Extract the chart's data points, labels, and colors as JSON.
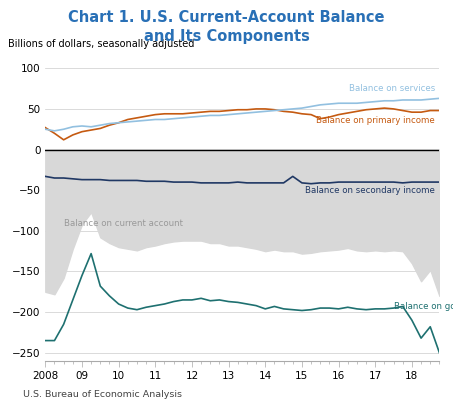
{
  "title": "Chart 1. U.S. Current-Account Balance\nand Its Components",
  "title_color": "#2970B6",
  "ylabel": "Billions of dollars, seasonally adjusted",
  "source": "U.S. Bureau of Economic Analysis",
  "ylim": [
    -260,
    110
  ],
  "yticks": [
    -250,
    -200,
    -150,
    -100,
    -50,
    0,
    50,
    100
  ],
  "xtick_labels": [
    "2008",
    "09",
    "10",
    "11",
    "12",
    "13",
    "14",
    "15",
    "16",
    "17",
    "18"
  ],
  "background_color": "#ffffff",
  "fill_color": "#d8d8d8",
  "services_color": "#92C0E0",
  "primary_color": "#C55A11",
  "secondary_color": "#203864",
  "goods_color": "#1E7070",
  "current_account_label_color": "#999999",
  "services": [
    25,
    23,
    25,
    28,
    29,
    28,
    30,
    32,
    33,
    34,
    35,
    36,
    37,
    37,
    38,
    39,
    40,
    41,
    42,
    42,
    43,
    44,
    45,
    46,
    47,
    48,
    49,
    50,
    51,
    53,
    55,
    56,
    57,
    57,
    57,
    58,
    59,
    60,
    60,
    61,
    61,
    61,
    62,
    63
  ],
  "primary_income": [
    27,
    20,
    12,
    18,
    22,
    24,
    26,
    30,
    33,
    37,
    39,
    41,
    43,
    44,
    44,
    44,
    45,
    46,
    47,
    47,
    48,
    49,
    49,
    50,
    50,
    49,
    47,
    46,
    44,
    43,
    38,
    40,
    43,
    45,
    47,
    49,
    50,
    51,
    50,
    48,
    46,
    46,
    48,
    48
  ],
  "secondary_income": [
    -33,
    -35,
    -35,
    -36,
    -37,
    -37,
    -37,
    -38,
    -38,
    -38,
    -38,
    -39,
    -39,
    -39,
    -40,
    -40,
    -40,
    -41,
    -41,
    -41,
    -41,
    -40,
    -41,
    -41,
    -41,
    -41,
    -41,
    -33,
    -41,
    -42,
    -41,
    -41,
    -40,
    -40,
    -40,
    -40,
    -40,
    -40,
    -40,
    -41,
    -40,
    -40,
    -40,
    -40
  ],
  "goods": [
    -235,
    -235,
    -215,
    -185,
    -155,
    -128,
    -168,
    -180,
    -190,
    -195,
    -197,
    -194,
    -192,
    -190,
    -187,
    -185,
    -185,
    -183,
    -186,
    -185,
    -187,
    -188,
    -190,
    -192,
    -196,
    -193,
    -196,
    -197,
    -198,
    -197,
    -195,
    -195,
    -196,
    -194,
    -196,
    -197,
    -196,
    -196,
    -195,
    -193,
    -210,
    -232,
    -218,
    -250
  ],
  "current_account": [
    -175,
    -178,
    -158,
    -122,
    -92,
    -77,
    -108,
    -115,
    -120,
    -122,
    -124,
    -120,
    -118,
    -115,
    -113,
    -112,
    -112,
    -112,
    -115,
    -115,
    -118,
    -118,
    -120,
    -122,
    -125,
    -123,
    -125,
    -125,
    -128,
    -127,
    -125,
    -124,
    -123,
    -121,
    -124,
    -125,
    -124,
    -125,
    -124,
    -125,
    -140,
    -162,
    -148,
    -180
  ]
}
